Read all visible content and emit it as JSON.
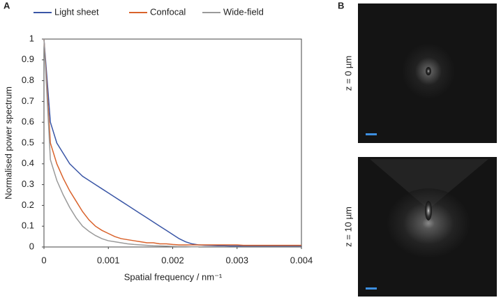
{
  "panel_labels": [
    "A",
    "B"
  ],
  "images": [
    {
      "label": "z = 0 µm"
    },
    {
      "label": "z = 10 µm"
    }
  ],
  "chart_data": {
    "type": "line",
    "x_label": "Spatial frequency / nm⁻¹",
    "y_label": "Normalised power spectrum",
    "x": [
      0,
      0.0001,
      0.0002,
      0.0003,
      0.0004,
      0.0005,
      0.0006,
      0.0007,
      0.0008,
      0.0009,
      0.001,
      0.0011,
      0.0012,
      0.0013,
      0.0014,
      0.0015,
      0.0016,
      0.0017,
      0.0018,
      0.0019,
      0.002,
      0.0021,
      0.0022,
      0.0023,
      0.0024,
      0.0025,
      0.0026,
      0.0027,
      0.0028,
      0.0029,
      0.003,
      0.0031,
      0.0032,
      0.0033,
      0.0034,
      0.0035,
      0.0036,
      0.0037,
      0.0038,
      0.0039,
      0.004
    ],
    "series": [
      {
        "name": "Light sheet",
        "color": "#3a56a6",
        "values": [
          1,
          0.6,
          0.5,
          0.45,
          0.4,
          0.37,
          0.34,
          0.32,
          0.3,
          0.28,
          0.26,
          0.24,
          0.22,
          0.2,
          0.18,
          0.16,
          0.14,
          0.12,
          0.1,
          0.08,
          0.06,
          0.04,
          0.025,
          0.015,
          0.01,
          0.008,
          0.007,
          0.006,
          0.006,
          0.005,
          0.005,
          0.005,
          0.005,
          0.005,
          0.005,
          0.005,
          0.005,
          0.005,
          0.005,
          0.005,
          0.005
        ]
      },
      {
        "name": "Confocal",
        "color": "#d9622b",
        "values": [
          1,
          0.5,
          0.4,
          0.33,
          0.27,
          0.22,
          0.17,
          0.13,
          0.1,
          0.08,
          0.065,
          0.05,
          0.04,
          0.035,
          0.03,
          0.025,
          0.02,
          0.02,
          0.015,
          0.015,
          0.012,
          0.01,
          0.01,
          0.01,
          0.01,
          0.01,
          0.01,
          0.01,
          0.01,
          0.01,
          0.01,
          0.008,
          0.008,
          0.008,
          0.008,
          0.008,
          0.008,
          0.008,
          0.008,
          0.008,
          0.008
        ]
      },
      {
        "name": "Wide-field",
        "color": "#9a9a9a",
        "values": [
          1,
          0.42,
          0.32,
          0.25,
          0.19,
          0.14,
          0.1,
          0.075,
          0.055,
          0.04,
          0.03,
          0.025,
          0.02,
          0.015,
          0.012,
          0.01,
          0.008,
          0.006,
          0.005,
          0.004,
          0.003,
          0.002,
          0.002,
          0.001,
          0.001,
          null,
          null,
          null,
          null,
          null,
          null,
          null,
          null,
          null,
          null,
          null,
          null,
          null,
          null,
          null,
          null
        ]
      }
    ],
    "xlim": [
      0,
      0.004
    ],
    "ylim": [
      0,
      1
    ],
    "xticks": [
      0,
      0.001,
      0.002,
      0.003,
      0.004
    ],
    "yticks": [
      0,
      0.1,
      0.2,
      0.3,
      0.4,
      0.5,
      0.6,
      0.7,
      0.8,
      0.9,
      1
    ],
    "grid": false
  }
}
